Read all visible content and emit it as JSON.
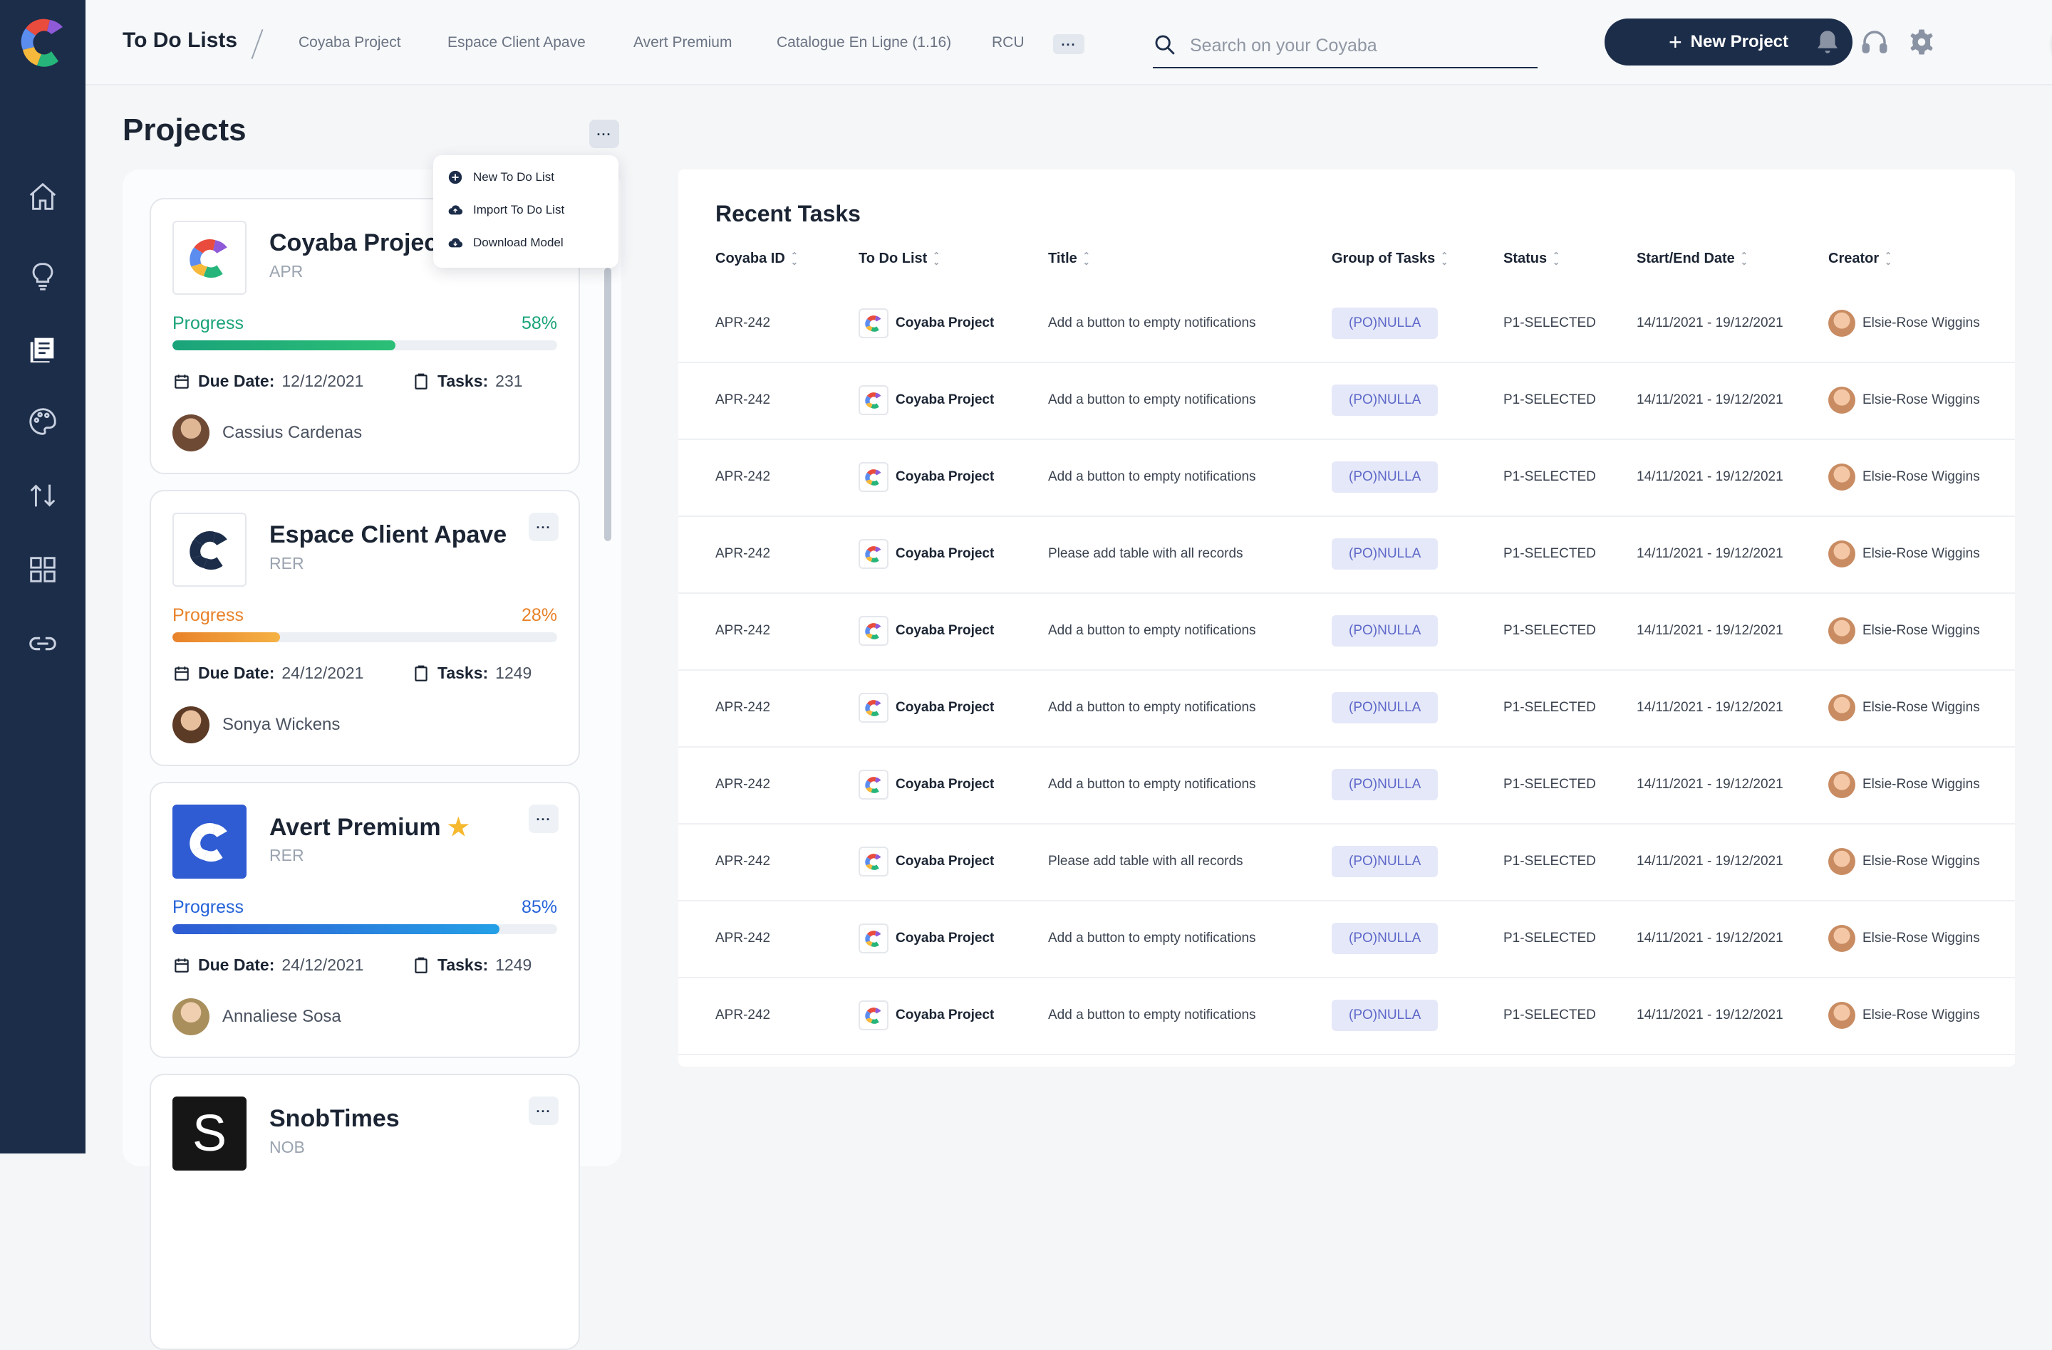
{
  "header": {
    "title": "To Do Lists",
    "tabs": [
      "Coyaba Project",
      "Espace Client Apave",
      "Avert Premium",
      "Catalogue En Ligne (1.16)",
      "RCU"
    ],
    "search_placeholder": "Search on your Coyaba",
    "new_project_label": "New Project"
  },
  "projects": {
    "title": "Projects",
    "menu": [
      "New To Do List",
      "Import To Do List",
      "Download Model"
    ],
    "cards": [
      {
        "name": "Coyaba Project",
        "code": "APR",
        "progress_label": "Progress",
        "progress_pct": "58%",
        "progress": 58,
        "color": "#1aa37a",
        "due_label": "Due Date:",
        "due": "12/12/2021",
        "tasks_label": "Tasks:",
        "tasks": "231",
        "owner": "Cassius Cardenas"
      },
      {
        "name": "Espace Client Apave",
        "code": "RER",
        "progress_label": "Progress",
        "progress_pct": "28%",
        "progress": 28,
        "color": "#e8822a",
        "due_label": "Due Date:",
        "due": "24/12/2021",
        "tasks_label": "Tasks:",
        "tasks": "1249",
        "owner": "Sonya Wickens"
      },
      {
        "name": "Avert Premium",
        "code": "RER",
        "progress_label": "Progress",
        "progress_pct": "85%",
        "progress": 85,
        "color": "#2563d9",
        "due_label": "Due Date:",
        "due": "24/12/2021",
        "tasks_label": "Tasks:",
        "tasks": "1249",
        "owner": "Annaliese Sosa",
        "starred": true
      },
      {
        "name": "SnobTimes",
        "code": "NOB",
        "logo_letter": "S"
      }
    ]
  },
  "tasks": {
    "title": "Recent Tasks",
    "columns": [
      "Coyaba ID",
      "To Do List",
      "Title",
      "Group of Tasks",
      "Status",
      "Start/End Date",
      "Creator"
    ],
    "rows": [
      {
        "id": "APR-242",
        "list": "Coyaba Project",
        "title": "Add a button to empty notifications",
        "group": "(PO)NULLA",
        "status": "P1-SELECTED",
        "dates": "14/11/2021 - 19/12/2021",
        "creator": "Elsie-Rose Wiggins"
      },
      {
        "id": "APR-242",
        "list": "Coyaba Project",
        "title": "Add a button to empty notifications",
        "group": "(PO)NULLA",
        "status": "P1-SELECTED",
        "dates": "14/11/2021 - 19/12/2021",
        "creator": "Elsie-Rose Wiggins"
      },
      {
        "id": "APR-242",
        "list": "Coyaba Project",
        "title": "Add a button to empty notifications",
        "group": "(PO)NULLA",
        "status": "P1-SELECTED",
        "dates": "14/11/2021 - 19/12/2021",
        "creator": "Elsie-Rose Wiggins"
      },
      {
        "id": "APR-242",
        "list": "Coyaba Project",
        "title": "Please add table with all records",
        "group": "(PO)NULLA",
        "status": "P1-SELECTED",
        "dates": "14/11/2021 - 19/12/2021",
        "creator": "Elsie-Rose Wiggins"
      },
      {
        "id": "APR-242",
        "list": "Coyaba Project",
        "title": "Add a button to empty notifications",
        "group": "(PO)NULLA",
        "status": "P1-SELECTED",
        "dates": "14/11/2021 - 19/12/2021",
        "creator": "Elsie-Rose Wiggins"
      },
      {
        "id": "APR-242",
        "list": "Coyaba Project",
        "title": "Add a button to empty notifications",
        "group": "(PO)NULLA",
        "status": "P1-SELECTED",
        "dates": "14/11/2021 - 19/12/2021",
        "creator": "Elsie-Rose Wiggins"
      },
      {
        "id": "APR-242",
        "list": "Coyaba Project",
        "title": "Add a button to empty notifications",
        "group": "(PO)NULLA",
        "status": "P1-SELECTED",
        "dates": "14/11/2021 - 19/12/2021",
        "creator": "Elsie-Rose Wiggins"
      },
      {
        "id": "APR-242",
        "list": "Coyaba Project",
        "title": "Please add table with all records",
        "group": "(PO)NULLA",
        "status": "P1-SELECTED",
        "dates": "14/11/2021 - 19/12/2021",
        "creator": "Elsie-Rose Wiggins"
      },
      {
        "id": "APR-242",
        "list": "Coyaba Project",
        "title": "Add a button to empty notifications",
        "group": "(PO)NULLA",
        "status": "P1-SELECTED",
        "dates": "14/11/2021 - 19/12/2021",
        "creator": "Elsie-Rose Wiggins"
      },
      {
        "id": "APR-242",
        "list": "Coyaba Project",
        "title": "Add a button to empty notifications",
        "group": "(PO)NULLA",
        "status": "P1-SELECTED",
        "dates": "14/11/2021 - 19/12/2021",
        "creator": "Elsie-Rose Wiggins"
      }
    ]
  },
  "colors": {
    "sidebar": "#1c2d4a",
    "accent": "#1c2d4a",
    "badge_bg": "#e5e8f8",
    "badge_text": "#5d68c9"
  },
  "icons": [
    "home-icon",
    "lightbulb-icon",
    "list-icon",
    "palette-icon",
    "transfer-icon",
    "grid-icon",
    "link-icon",
    "search-icon",
    "bell-icon",
    "headphones-icon",
    "gear-icon"
  ]
}
